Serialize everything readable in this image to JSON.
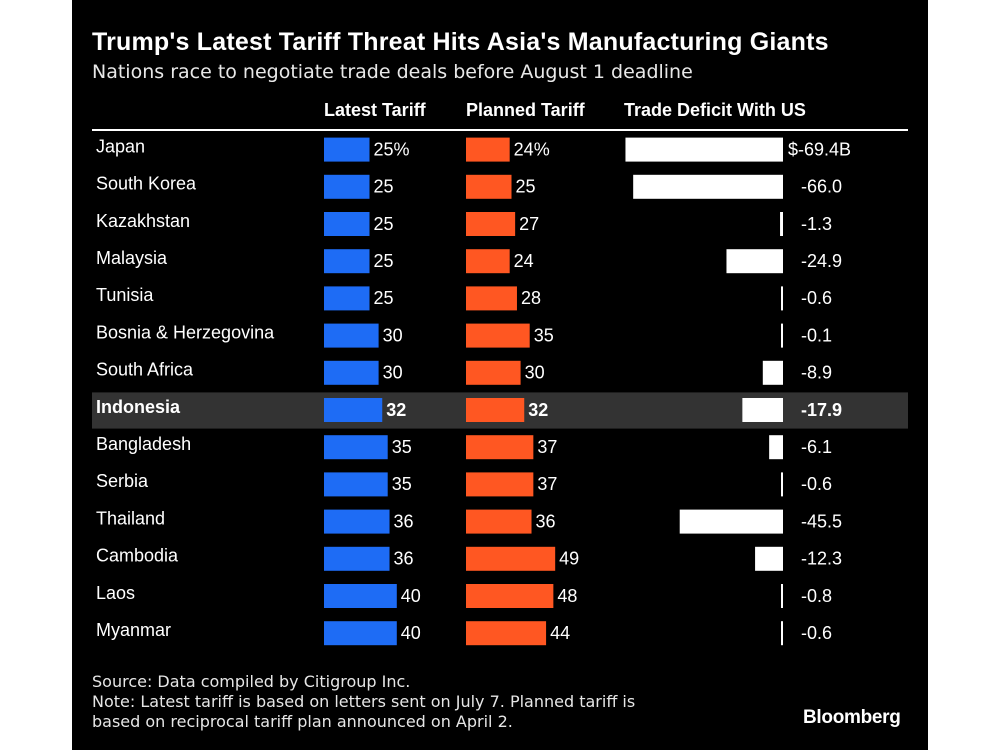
{
  "title": "Trump's Latest Tariff Threat Hits Asia's Manufacturing Giants",
  "subtitle": "Nations race to negotiate trade deals before August 1 deadline",
  "columns": {
    "latest": "Latest Tariff",
    "planned": "Planned Tariff",
    "deficit": "Trade Deficit With US"
  },
  "colors": {
    "background": "#000000",
    "latest": "#1e6cf5",
    "planned": "#ff5722",
    "deficit": "#ffffff",
    "highlight_row": "#333333"
  },
  "chart_data": {
    "type": "bar",
    "highlight": "Indonesia",
    "categories": [
      "Japan",
      "South Korea",
      "Kazakhstan",
      "Malaysia",
      "Tunisia",
      "Bosnia & Herzegovina",
      "South Africa",
      "Indonesia",
      "Bangladesh",
      "Serbia",
      "Thailand",
      "Cambodia",
      "Laos",
      "Myanmar"
    ],
    "series": [
      {
        "name": "Latest Tariff",
        "values": [
          25,
          25,
          25,
          25,
          25,
          30,
          30,
          32,
          35,
          35,
          36,
          36,
          40,
          40
        ],
        "labels": [
          "25%",
          "25",
          "25",
          "25",
          "25",
          "30",
          "30",
          "32",
          "35",
          "35",
          "36",
          "36",
          "40",
          "40"
        ]
      },
      {
        "name": "Planned Tariff",
        "values": [
          24,
          25,
          27,
          24,
          28,
          35,
          30,
          32,
          37,
          37,
          36,
          49,
          48,
          44
        ],
        "labels": [
          "24%",
          "25",
          "27",
          "24",
          "28",
          "35",
          "30",
          "32",
          "37",
          "37",
          "36",
          "49",
          "48",
          "44"
        ]
      },
      {
        "name": "Trade Deficit With US",
        "values": [
          -69.4,
          -66.0,
          -1.3,
          -24.9,
          -0.6,
          -0.1,
          -8.9,
          -17.9,
          -6.1,
          -0.6,
          -45.5,
          -12.3,
          -0.8,
          -0.6
        ],
        "labels": [
          "$-69.4B",
          "-66.0",
          "-1.3",
          "-24.9",
          "-0.6",
          "-0.1",
          "-8.9",
          "-17.9",
          "-6.1",
          "-0.6",
          "-45.5",
          "-12.3",
          "-0.8",
          "-0.6"
        ]
      }
    ]
  },
  "footer": {
    "source": "Source: Data compiled by Citigroup Inc.",
    "note_line1": "Note: Latest tariff is based on letters sent on July 7. Planned tariff is",
    "note_line2": "based on reciprocal tariff plan announced on April 2."
  },
  "brand": "Bloomberg"
}
